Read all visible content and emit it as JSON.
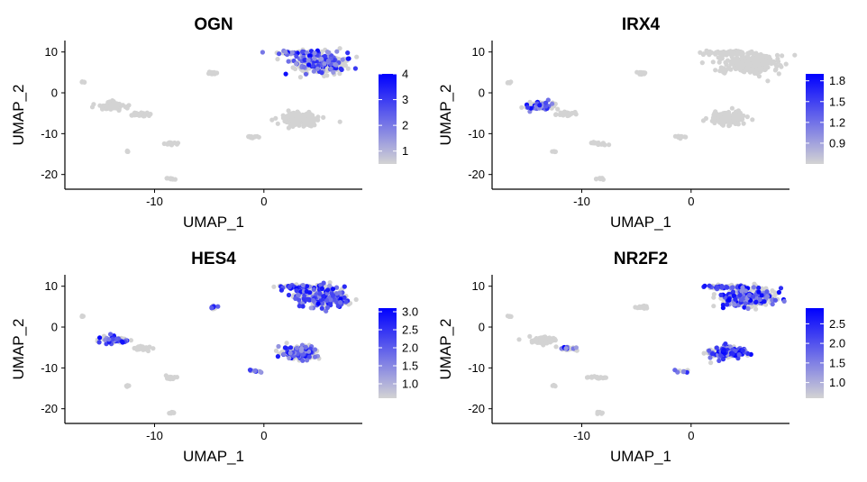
{
  "chart_data": [
    {
      "type": "scatter",
      "title": "OGN",
      "xlabel": "UMAP_1",
      "ylabel": "UMAP_2",
      "xlim": [
        -18.2,
        9.0
      ],
      "ylim": [
        -23.6,
        12.8
      ],
      "x_ticks": [
        -10,
        0
      ],
      "y_ticks": [
        10,
        0,
        -10,
        -20
      ],
      "colorbar": {
        "min": 0.5,
        "max": 4.0,
        "ticks": [
          1,
          2,
          3,
          4
        ]
      },
      "high_clusters": [
        "A",
        "B"
      ],
      "low_color": "#d3d3d3",
      "high_color": "#0000ff"
    },
    {
      "type": "scatter",
      "title": "IRX4",
      "xlabel": "UMAP_1",
      "ylabel": "UMAP_2",
      "xlim": [
        -18.2,
        9.0
      ],
      "ylim": [
        -23.6,
        12.8
      ],
      "x_ticks": [
        -10,
        0
      ],
      "y_ticks": [
        10,
        0,
        -10,
        -20
      ],
      "colorbar": {
        "min": 0.6,
        "max": 1.9,
        "ticks": [
          0.9,
          1.2,
          1.5,
          1.8
        ]
      },
      "high_clusters": [
        "F"
      ],
      "low_color": "#d3d3d3",
      "high_color": "#0000ff"
    },
    {
      "type": "scatter",
      "title": "HES4",
      "xlabel": "UMAP_1",
      "ylabel": "UMAP_2",
      "xlim": [
        -18.2,
        9.0
      ],
      "ylim": [
        -23.6,
        12.8
      ],
      "x_ticks": [
        -10,
        0
      ],
      "y_ticks": [
        10,
        0,
        -10,
        -20
      ],
      "colorbar": {
        "min": 0.6,
        "max": 3.1,
        "ticks": [
          1.0,
          1.5,
          2.0,
          2.5,
          3.0
        ]
      },
      "high_clusters": [
        "A",
        "B",
        "C",
        "D",
        "E",
        "F",
        "J"
      ],
      "low_color": "#d3d3d3",
      "high_color": "#0000ff"
    },
    {
      "type": "scatter",
      "title": "NR2F2",
      "xlabel": "UMAP_1",
      "ylabel": "UMAP_2",
      "xlim": [
        -18.2,
        9.0
      ],
      "ylim": [
        -23.6,
        12.8
      ],
      "x_ticks": [
        -10,
        0
      ],
      "y_ticks": [
        10,
        0,
        -10,
        -20
      ],
      "colorbar": {
        "min": 0.6,
        "max": 2.9,
        "ticks": [
          1.0,
          1.5,
          2.0,
          2.5
        ]
      },
      "high_clusters": [
        "A",
        "B",
        "C",
        "E",
        "G"
      ],
      "low_color": "#d3d3d3",
      "high_color": "#0000ff"
    }
  ],
  "clusters": [
    {
      "id": "A",
      "cx": 3.5,
      "cy": 9.8,
      "sx": 2.0,
      "sy": 0.4,
      "n": 70
    },
    {
      "id": "B",
      "cx": 5.3,
      "cy": 7.2,
      "sx": 2.5,
      "sy": 2.2,
      "n": 260
    },
    {
      "id": "C",
      "cx": 3.3,
      "cy": -6.3,
      "sx": 1.4,
      "sy": 1.4,
      "n": 190
    },
    {
      "id": "D",
      "cx": -4.6,
      "cy": 4.8,
      "sx": 0.4,
      "sy": 0.3,
      "n": 14
    },
    {
      "id": "E",
      "cx": -0.9,
      "cy": -10.8,
      "sx": 0.6,
      "sy": 0.3,
      "n": 12
    },
    {
      "id": "F",
      "cx": -13.8,
      "cy": -3.2,
      "sx": 1.1,
      "sy": 0.8,
      "n": 70
    },
    {
      "id": "G",
      "cx": -11.2,
      "cy": -5.2,
      "sx": 0.9,
      "sy": 0.5,
      "n": 26
    },
    {
      "id": "H",
      "cx": -8.5,
      "cy": -12.4,
      "sx": 0.8,
      "sy": 0.3,
      "n": 18
    },
    {
      "id": "I",
      "cx": -8.4,
      "cy": -21.0,
      "sx": 0.4,
      "sy": 0.2,
      "n": 8
    },
    {
      "id": "J",
      "cx": -12.5,
      "cy": -14.4,
      "sx": 0.15,
      "sy": 0.2,
      "n": 4
    },
    {
      "id": "K",
      "cx": -16.6,
      "cy": 2.6,
      "sx": 0.15,
      "sy": 0.2,
      "n": 4
    }
  ]
}
